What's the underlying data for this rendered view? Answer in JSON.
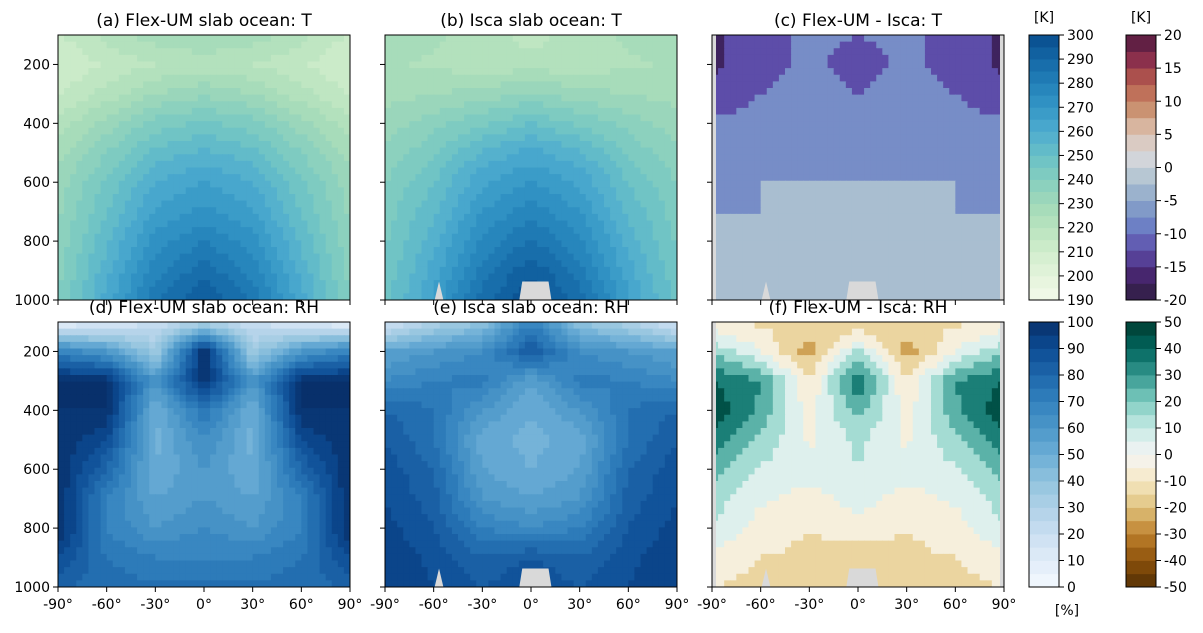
{
  "figure": {
    "x_tick_labels": [
      "-90°",
      "-60°",
      "-30°",
      "0°",
      "30°",
      "60°",
      "90°"
    ],
    "y_tick_labels": [
      "200",
      "400",
      "600",
      "800",
      "1000"
    ],
    "colorbar_units": {
      "temperature": "[K]",
      "temperature_diff": "[K]",
      "rh": "[%]"
    }
  },
  "chart_data": [
    {
      "type": "heatmap",
      "title": "(a) Flex-UM slab ocean: T",
      "variable": "T",
      "units": "K",
      "x": [
        -90,
        -60,
        -30,
        0,
        30,
        60,
        90
      ],
      "y": [
        100,
        200,
        300,
        400,
        500,
        600,
        700,
        800,
        900,
        1000
      ],
      "xlim": [
        -90,
        90
      ],
      "ylim": [
        1000,
        100
      ],
      "colormap": "GnBu (green-blue)",
      "clim": [
        190,
        300
      ],
      "values": [
        [
          214,
          222,
          228,
          230,
          228,
          222,
          214
        ],
        [
          210,
          216,
          220,
          222,
          220,
          216,
          210
        ],
        [
          214,
          222,
          230,
          234,
          230,
          222,
          214
        ],
        [
          222,
          232,
          242,
          246,
          242,
          232,
          222
        ],
        [
          228,
          240,
          252,
          256,
          252,
          240,
          228
        ],
        [
          232,
          246,
          260,
          265,
          260,
          246,
          232
        ],
        [
          234,
          250,
          266,
          272,
          266,
          250,
          234
        ],
        [
          236,
          254,
          272,
          280,
          272,
          254,
          236
        ],
        [
          238,
          258,
          278,
          288,
          278,
          258,
          238
        ],
        [
          240,
          262,
          284,
          296,
          284,
          262,
          240
        ]
      ]
    },
    {
      "type": "heatmap",
      "title": "(b) Isca slab ocean: T",
      "variable": "T",
      "units": "K",
      "x": [
        -90,
        -60,
        -30,
        0,
        30,
        60,
        90
      ],
      "y": [
        100,
        200,
        300,
        400,
        500,
        600,
        700,
        800,
        900,
        1000
      ],
      "xlim": [
        -90,
        90
      ],
      "ylim": [
        1000,
        100
      ],
      "colormap": "GnBu (green-blue)",
      "clim": [
        190,
        300
      ],
      "values": [
        [
          228,
          226,
          222,
          218,
          222,
          226,
          228
        ],
        [
          226,
          224,
          222,
          222,
          222,
          224,
          226
        ],
        [
          228,
          230,
          232,
          236,
          232,
          230,
          228
        ],
        [
          232,
          238,
          244,
          250,
          244,
          238,
          232
        ],
        [
          236,
          244,
          256,
          262,
          256,
          244,
          236
        ],
        [
          240,
          250,
          264,
          270,
          264,
          250,
          240
        ],
        [
          242,
          254,
          270,
          278,
          270,
          254,
          242
        ],
        [
          244,
          258,
          276,
          286,
          276,
          258,
          244
        ],
        [
          246,
          262,
          282,
          294,
          282,
          262,
          246
        ],
        [
          248,
          266,
          288,
          300,
          288,
          266,
          248
        ]
      ]
    },
    {
      "type": "heatmap",
      "title": "(c) Flex-UM - Isca: T",
      "variable": "T difference",
      "units": "K",
      "x": [
        -90,
        -60,
        -30,
        0,
        30,
        60,
        90
      ],
      "y": [
        100,
        200,
        300,
        400,
        500,
        600,
        700,
        800,
        900,
        1000
      ],
      "xlim": [
        -90,
        90
      ],
      "ylim": [
        1000,
        100
      ],
      "colormap": "twilight-like diverging (purple-blue / grey / orange-maroon)",
      "clim": [
        -20,
        20
      ],
      "values": [
        [
          -16,
          -12,
          -9,
          -10,
          -9,
          -12,
          -16
        ],
        [
          -16,
          -12,
          -9,
          -12,
          -9,
          -12,
          -16
        ],
        [
          -14,
          -10,
          -8,
          -10,
          -8,
          -10,
          -14
        ],
        [
          -9,
          -8,
          -7,
          -8,
          -7,
          -8,
          -9
        ],
        [
          -7,
          -6,
          -6,
          -6,
          -6,
          -6,
          -7
        ],
        [
          -6,
          -5,
          -5,
          -5,
          -5,
          -5,
          -6
        ],
        [
          -5,
          -5,
          -5,
          -5,
          -5,
          -5,
          -5
        ],
        [
          -3,
          -4,
          -3,
          -4,
          -3,
          -4,
          -3
        ],
        [
          -3,
          -3,
          -4,
          -3,
          -4,
          -3,
          -3
        ],
        [
          -2,
          -3,
          -3,
          -2,
          -3,
          -3,
          -2
        ]
      ]
    },
    {
      "type": "heatmap",
      "title": "(d) Flex-UM slab ocean: RH",
      "variable": "RH",
      "units": "%",
      "x": [
        -90,
        -60,
        -30,
        0,
        30,
        60,
        90
      ],
      "y": [
        100,
        200,
        300,
        400,
        500,
        600,
        700,
        800,
        900,
        1000
      ],
      "xlim": [
        -90,
        90
      ],
      "ylim": [
        1000,
        100
      ],
      "colormap": "Blues",
      "clim": [
        0,
        100
      ],
      "values": [
        [
          6,
          12,
          20,
          30,
          20,
          12,
          6
        ],
        [
          70,
          60,
          35,
          100,
          35,
          60,
          70
        ],
        [
          100,
          100,
          60,
          100,
          60,
          100,
          100
        ],
        [
          100,
          100,
          50,
          75,
          50,
          100,
          100
        ],
        [
          100,
          90,
          48,
          65,
          48,
          90,
          100
        ],
        [
          100,
          80,
          50,
          60,
          50,
          80,
          100
        ],
        [
          100,
          70,
          55,
          60,
          55,
          70,
          100
        ],
        [
          100,
          70,
          60,
          65,
          60,
          70,
          100
        ],
        [
          90,
          75,
          70,
          70,
          70,
          75,
          90
        ],
        [
          80,
          78,
          76,
          76,
          76,
          78,
          80
        ]
      ]
    },
    {
      "type": "heatmap",
      "title": "(e) Isca slab ocean: RH",
      "variable": "RH",
      "units": "%",
      "x": [
        -90,
        -60,
        -30,
        0,
        30,
        60,
        90
      ],
      "y": [
        100,
        200,
        300,
        400,
        500,
        600,
        700,
        800,
        900,
        1000
      ],
      "xlim": [
        -90,
        90
      ],
      "ylim": [
        1000,
        100
      ],
      "colormap": "Blues",
      "clim": [
        0,
        100
      ],
      "values": [
        [
          15,
          30,
          40,
          70,
          40,
          30,
          15
        ],
        [
          55,
          60,
          65,
          85,
          65,
          60,
          55
        ],
        [
          65,
          70,
          72,
          55,
          72,
          70,
          65
        ],
        [
          80,
          75,
          60,
          50,
          60,
          75,
          80
        ],
        [
          85,
          75,
          52,
          48,
          52,
          75,
          85
        ],
        [
          88,
          80,
          55,
          50,
          55,
          80,
          88
        ],
        [
          90,
          82,
          60,
          55,
          60,
          82,
          90
        ],
        [
          92,
          85,
          70,
          65,
          70,
          85,
          92
        ],
        [
          95,
          88,
          80,
          85,
          80,
          88,
          95
        ],
        [
          95,
          90,
          85,
          90,
          85,
          90,
          95
        ]
      ]
    },
    {
      "type": "heatmap",
      "title": "(f) Flex-UM - Isca: RH",
      "variable": "RH difference",
      "units": "%",
      "x": [
        -90,
        -60,
        -30,
        0,
        30,
        60,
        90
      ],
      "y": [
        100,
        200,
        300,
        400,
        500,
        600,
        700,
        800,
        900,
        1000
      ],
      "xlim": [
        -90,
        90
      ],
      "ylim": [
        1000,
        100
      ],
      "colormap": "BrBG",
      "clim": [
        -50,
        50
      ],
      "values": [
        [
          -8,
          -12,
          -15,
          -20,
          -15,
          -12,
          -8
        ],
        [
          18,
          0,
          -25,
          12,
          -25,
          0,
          18
        ],
        [
          40,
          30,
          -10,
          40,
          -10,
          30,
          40
        ],
        [
          48,
          28,
          -5,
          25,
          -5,
          28,
          48
        ],
        [
          35,
          18,
          -2,
          12,
          -2,
          18,
          35
        ],
        [
          25,
          8,
          5,
          10,
          5,
          8,
          25
        ],
        [
          15,
          2,
          -5,
          5,
          -5,
          2,
          15
        ],
        [
          10,
          -5,
          -10,
          -5,
          -10,
          -5,
          10
        ],
        [
          -5,
          -10,
          -12,
          -15,
          -12,
          -10,
          -5
        ],
        [
          -10,
          -12,
          -10,
          -10,
          -10,
          -12,
          -10
        ]
      ]
    }
  ],
  "colorbars": [
    {
      "label": "[K]",
      "ticks": [
        "190",
        "200",
        "210",
        "220",
        "230",
        "240",
        "250",
        "260",
        "270",
        "280",
        "290",
        "300"
      ],
      "min": 190,
      "max": 300,
      "colormap": "GnBu",
      "cmap": "seq_gnbu"
    },
    {
      "label": "[K]",
      "ticks": [
        "-20",
        "-15",
        "-10",
        "-5",
        "0",
        "5",
        "10",
        "15",
        "20"
      ],
      "min": -20,
      "max": 20,
      "colormap": "twilight_shifted",
      "cmap": "div_t"
    },
    {
      "label": "[%]",
      "ticks": [
        "0",
        "10",
        "20",
        "30",
        "40",
        "50",
        "60",
        "70",
        "80",
        "90",
        "100"
      ],
      "min": 0,
      "max": 100,
      "colormap": "Blues",
      "cmap": "seq_blues"
    },
    {
      "label": "",
      "ticks": [
        "-50",
        "-40",
        "-30",
        "-20",
        "-10",
        "0",
        "10",
        "20",
        "30",
        "40",
        "50"
      ],
      "min": -50,
      "max": 50,
      "colormap": "BrBG",
      "cmap": "div_brbg"
    }
  ],
  "colors": {
    "seq_gnbu": [
      "#f2f9ea",
      "#e4f4db",
      "#d1edcd",
      "#b9e3be",
      "#a1d9b9",
      "#85cebf",
      "#69c0c7",
      "#4eaccf",
      "#3596c6",
      "#2280b8",
      "#1468a6",
      "#084c8d"
    ],
    "seq_blues": [
      "#f4f9fe",
      "#e0ecf8",
      "#cadef1",
      "#afd1e7",
      "#91c3de",
      "#6caed6",
      "#4c97c9",
      "#3282be",
      "#1e67ab",
      "#0c4c94",
      "#08306b"
    ],
    "div_t": [
      "#2d1e3e",
      "#46256c",
      "#5c4aa7",
      "#6a7cc5",
      "#88a2c9",
      "#b1c4d1",
      "#d8d8dc",
      "#dcc0ad",
      "#c88d6c",
      "#b85d4e",
      "#8a2f4c",
      "#4d1840"
    ],
    "div_brbg": [
      "#543005",
      "#8c510a",
      "#bf812d",
      "#dfc27d",
      "#f6e8c3",
      "#f5f5f5",
      "#c7eae5",
      "#80cdc1",
      "#35978f",
      "#01665e",
      "#003c30"
    ],
    "missing": "#d9d9d9"
  }
}
